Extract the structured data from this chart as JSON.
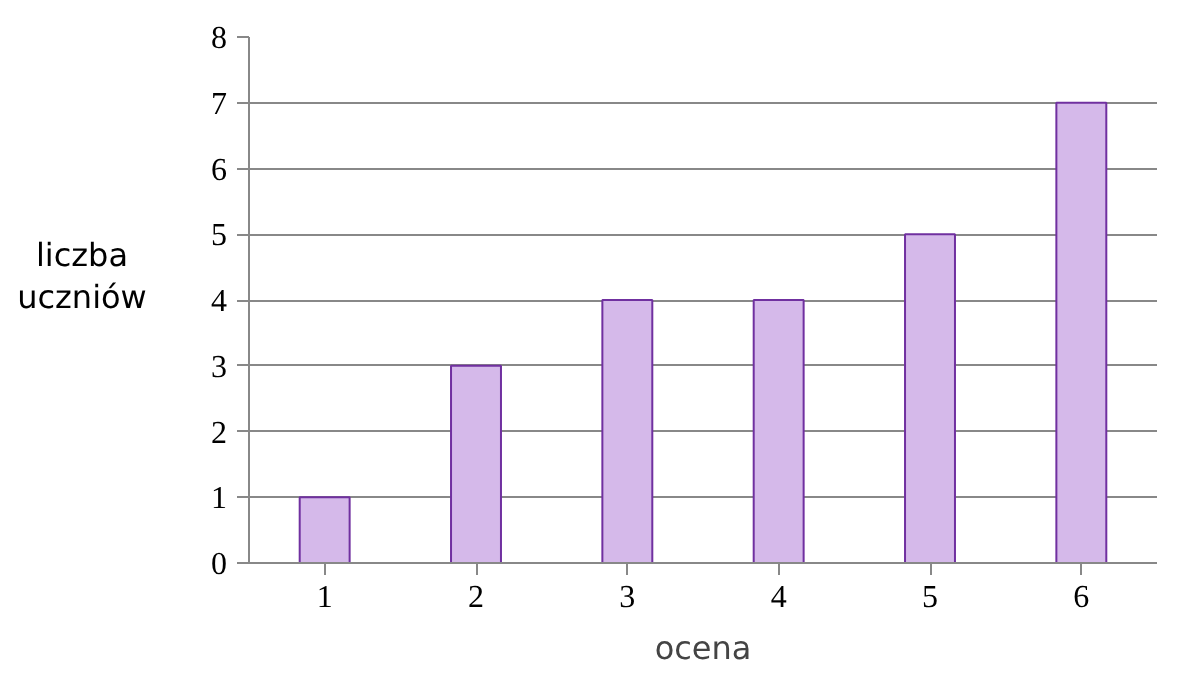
{
  "chart_data": {
    "type": "bar",
    "xlabel": "ocena",
    "ylabel": "liczba uczniów",
    "categories": [
      "1",
      "2",
      "3",
      "4",
      "5",
      "6"
    ],
    "values": [
      1,
      3,
      4,
      4,
      5,
      7
    ],
    "color": "#d5b9ea",
    "ylim": [
      0,
      8
    ],
    "yticks": [
      0,
      1,
      2,
      3,
      4,
      5,
      6,
      7,
      8
    ],
    "grid": "y"
  }
}
